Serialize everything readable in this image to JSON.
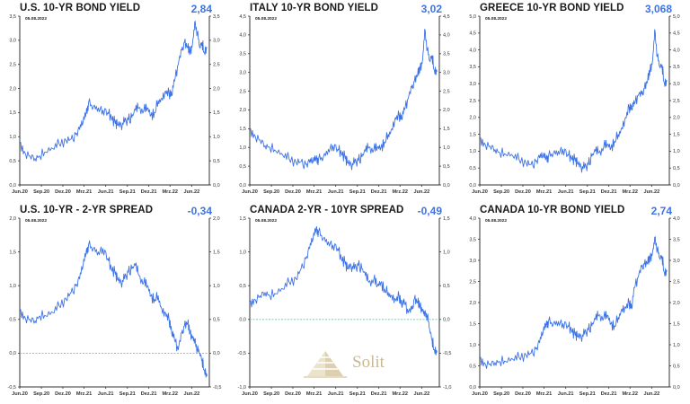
{
  "colors": {
    "line": "#3d73e8",
    "zero_line": "#3fd9b0",
    "axis": "#333333",
    "title": "#1a1a1a",
    "value": "#3d73e8",
    "watermark": "#c9b896"
  },
  "watermark": {
    "text": "Solit"
  },
  "chart_data": [
    {
      "type": "line",
      "title": "U.S. 10-YR BOND YIELD",
      "current_value": "2,84",
      "date_stamp": "05.08.2022",
      "xlabel": "",
      "ylabel": "",
      "x_ticks": [
        "Jun.20",
        "Sep.20",
        "Dez.20",
        "Mrz.21",
        "Jun.21",
        "Sep.21",
        "Dez.21",
        "Mrz.22",
        "Jun.22"
      ],
      "y_ticks": [
        "0,0",
        "0,5",
        "1,0",
        "1,5",
        "2,0",
        "2,5",
        "3,0",
        "3,5"
      ],
      "ylim": [
        0,
        3.5
      ],
      "zero_line": false,
      "grid": false,
      "x": [
        "2020-06-01",
        "2020-06-20",
        "2020-07-15",
        "2020-08-05",
        "2020-08-25",
        "2020-09-20",
        "2020-10-20",
        "2020-11-15",
        "2020-12-15",
        "2021-01-05",
        "2021-01-25",
        "2021-02-10",
        "2021-02-25",
        "2021-03-10",
        "2021-03-20",
        "2021-04-10",
        "2021-05-01",
        "2021-05-20",
        "2021-06-10",
        "2021-06-25",
        "2021-07-10",
        "2021-07-20",
        "2021-08-05",
        "2021-08-20",
        "2021-09-05",
        "2021-09-20",
        "2021-10-05",
        "2021-10-20",
        "2021-11-10",
        "2021-11-25",
        "2021-12-10",
        "2021-12-25",
        "2022-01-10",
        "2022-01-25",
        "2022-02-10",
        "2022-02-25",
        "2022-03-08",
        "2022-03-20",
        "2022-04-05",
        "2022-04-20",
        "2022-05-01",
        "2022-05-15",
        "2022-05-25",
        "2022-06-05",
        "2022-06-14",
        "2022-06-25",
        "2022-07-05",
        "2022-07-15",
        "2022-07-25",
        "2022-08-05"
      ],
      "series": [
        {
          "values": [
            0.9,
            0.7,
            0.6,
            0.55,
            0.6,
            0.68,
            0.75,
            0.85,
            0.92,
            0.95,
            1.05,
            1.15,
            1.3,
            1.5,
            1.7,
            1.62,
            1.6,
            1.55,
            1.5,
            1.4,
            1.3,
            1.25,
            1.25,
            1.3,
            1.35,
            1.4,
            1.55,
            1.6,
            1.55,
            1.6,
            1.45,
            1.5,
            1.75,
            1.8,
            1.95,
            1.9,
            1.85,
            2.15,
            2.5,
            2.8,
            2.95,
            2.85,
            2.75,
            2.95,
            3.38,
            3.15,
            2.85,
            2.95,
            2.75,
            2.84
          ]
        }
      ]
    },
    {
      "type": "line",
      "title": "ITALY 10-YR BOND YIELD",
      "current_value": "3,02",
      "date_stamp": "05.08.2022",
      "xlabel": "",
      "ylabel": "",
      "x_ticks": [
        "Jun.20",
        "Sep.20",
        "Dez.20",
        "Mrz.21",
        "Jun.21",
        "Sep.21",
        "Dez.21",
        "Mrz.22",
        "Jun.22"
      ],
      "y_ticks": [
        "0,0",
        "0,5",
        "1,0",
        "1,5",
        "2,0",
        "2,5",
        "3,0",
        "3,5",
        "4,0",
        "4,5"
      ],
      "ylim": [
        0,
        4.5
      ],
      "zero_line": false,
      "grid": false,
      "x": [
        "2020-06-01",
        "2020-06-20",
        "2020-07-15",
        "2020-08-05",
        "2020-08-25",
        "2020-09-20",
        "2020-10-20",
        "2020-11-15",
        "2020-12-15",
        "2021-01-05",
        "2021-01-25",
        "2021-02-10",
        "2021-02-25",
        "2021-03-10",
        "2021-03-20",
        "2021-04-10",
        "2021-05-01",
        "2021-05-20",
        "2021-06-10",
        "2021-06-25",
        "2021-07-10",
        "2021-07-20",
        "2021-08-05",
        "2021-08-20",
        "2021-09-05",
        "2021-09-20",
        "2021-10-05",
        "2021-10-20",
        "2021-11-10",
        "2021-11-25",
        "2021-12-10",
        "2021-12-25",
        "2022-01-10",
        "2022-01-25",
        "2022-02-10",
        "2022-02-25",
        "2022-03-08",
        "2022-03-20",
        "2022-04-05",
        "2022-04-20",
        "2022-05-01",
        "2022-05-15",
        "2022-05-25",
        "2022-06-05",
        "2022-06-14",
        "2022-06-25",
        "2022-07-05",
        "2022-07-15",
        "2022-07-25",
        "2022-08-05"
      ],
      "series": [
        {
          "values": [
            1.5,
            1.35,
            1.2,
            1.05,
            1.0,
            0.9,
            0.78,
            0.7,
            0.6,
            0.62,
            0.55,
            0.6,
            0.62,
            0.72,
            0.68,
            0.75,
            0.95,
            1.05,
            0.95,
            0.85,
            0.75,
            0.6,
            0.55,
            0.58,
            0.65,
            0.75,
            0.9,
            1.0,
            0.95,
            1.0,
            1.0,
            1.15,
            1.35,
            1.5,
            1.8,
            1.85,
            1.75,
            2.0,
            2.3,
            2.6,
            2.75,
            2.95,
            3.1,
            3.35,
            4.15,
            3.6,
            3.3,
            3.45,
            3.05,
            3.02
          ]
        }
      ]
    },
    {
      "type": "line",
      "title": "GREECE 10-YR BOND YIELD",
      "current_value": "3,068",
      "date_stamp": "05.08.2022",
      "xlabel": "",
      "ylabel": "",
      "x_ticks": [
        "Jun.20",
        "Sep.20",
        "Dez.20",
        "Mrz.21",
        "Jun.21",
        "Sep.21",
        "Dez.21",
        "Mrz.22",
        "Jun.22"
      ],
      "y_ticks": [
        "0,0",
        "0,5",
        "1,0",
        "1,5",
        "2,0",
        "2,5",
        "3,0",
        "3,5",
        "4,0",
        "4,5",
        "5,0"
      ],
      "ylim": [
        0,
        5.0
      ],
      "zero_line": false,
      "grid": false,
      "x": [
        "2020-06-01",
        "2020-06-20",
        "2020-07-15",
        "2020-08-05",
        "2020-08-25",
        "2020-09-20",
        "2020-10-20",
        "2020-11-15",
        "2020-12-15",
        "2021-01-05",
        "2021-01-25",
        "2021-02-10",
        "2021-02-25",
        "2021-03-10",
        "2021-03-20",
        "2021-04-10",
        "2021-05-01",
        "2021-05-20",
        "2021-06-10",
        "2021-06-25",
        "2021-07-10",
        "2021-07-20",
        "2021-08-05",
        "2021-08-20",
        "2021-09-05",
        "2021-09-20",
        "2021-10-05",
        "2021-10-20",
        "2021-11-10",
        "2021-11-25",
        "2021-12-10",
        "2021-12-25",
        "2022-01-10",
        "2022-01-25",
        "2022-02-10",
        "2022-02-25",
        "2022-03-08",
        "2022-03-20",
        "2022-04-05",
        "2022-04-20",
        "2022-05-01",
        "2022-05-15",
        "2022-05-25",
        "2022-06-05",
        "2022-06-14",
        "2022-06-25",
        "2022-07-05",
        "2022-07-15",
        "2022-07-25",
        "2022-08-05"
      ],
      "series": [
        {
          "values": [
            1.4,
            1.25,
            1.15,
            1.05,
            0.95,
            0.9,
            0.85,
            0.75,
            0.65,
            0.6,
            0.7,
            0.8,
            0.85,
            0.8,
            0.85,
            0.95,
            1.0,
            1.05,
            0.9,
            0.8,
            0.75,
            0.65,
            0.55,
            0.5,
            0.6,
            0.85,
            1.0,
            0.95,
            1.15,
            1.2,
            1.1,
            1.3,
            1.5,
            1.7,
            2.0,
            2.3,
            2.25,
            2.4,
            2.65,
            2.7,
            2.85,
            3.1,
            3.4,
            3.7,
            4.6,
            3.8,
            3.5,
            3.55,
            3.0,
            3.068
          ]
        }
      ]
    },
    {
      "type": "line",
      "title": "U.S. 10-YR - 2-YR SPREAD",
      "current_value": "-0,34",
      "date_stamp": "05.08.2022",
      "xlabel": "",
      "ylabel": "",
      "x_ticks": [
        "Jun.20",
        "Sep.20",
        "Dez.20",
        "Mrz.21",
        "Jun.21",
        "Sep.21",
        "Dez.21",
        "Mrz.22",
        "Jun.22"
      ],
      "y_ticks": [
        "-0,5",
        "0,0",
        "0,5",
        "1,0",
        "1,5",
        "2,0"
      ],
      "ylim": [
        -0.5,
        2.0
      ],
      "zero_line": true,
      "grid": false,
      "x": [
        "2020-06-01",
        "2020-06-20",
        "2020-07-15",
        "2020-08-05",
        "2020-08-25",
        "2020-09-20",
        "2020-10-20",
        "2020-11-15",
        "2020-12-15",
        "2021-01-05",
        "2021-01-25",
        "2021-02-10",
        "2021-02-25",
        "2021-03-10",
        "2021-03-20",
        "2021-04-10",
        "2021-05-01",
        "2021-05-20",
        "2021-06-10",
        "2021-06-25",
        "2021-07-10",
        "2021-07-20",
        "2021-08-05",
        "2021-08-20",
        "2021-09-05",
        "2021-09-20",
        "2021-10-05",
        "2021-10-20",
        "2021-11-10",
        "2021-11-25",
        "2021-12-10",
        "2021-12-25",
        "2022-01-10",
        "2022-01-25",
        "2022-02-10",
        "2022-02-25",
        "2022-03-08",
        "2022-03-20",
        "2022-04-05",
        "2022-04-20",
        "2022-05-01",
        "2022-05-15",
        "2022-05-25",
        "2022-06-05",
        "2022-06-14",
        "2022-06-25",
        "2022-07-05",
        "2022-07-15",
        "2022-07-25",
        "2022-08-05"
      ],
      "series": [
        {
          "values": [
            0.65,
            0.55,
            0.5,
            0.48,
            0.55,
            0.55,
            0.6,
            0.7,
            0.8,
            0.9,
            1.0,
            1.1,
            1.3,
            1.5,
            1.6,
            1.55,
            1.5,
            1.55,
            1.4,
            1.25,
            1.2,
            1.1,
            1.05,
            1.1,
            1.2,
            1.25,
            1.3,
            1.15,
            1.05,
            1.0,
            0.85,
            0.8,
            0.85,
            0.65,
            0.6,
            0.5,
            0.3,
            0.2,
            0.05,
            0.3,
            0.4,
            0.45,
            0.3,
            0.25,
            0.2,
            0.05,
            0.0,
            -0.1,
            -0.25,
            -0.34
          ]
        }
      ]
    },
    {
      "type": "line",
      "title": "CANADA 2-YR - 10YR SPREAD",
      "current_value": "-0,49",
      "date_stamp": "05.08.2022",
      "xlabel": "",
      "ylabel": "",
      "x_ticks": [
        "Jun.20",
        "Sep.20",
        "Dez.20",
        "Mrz.21",
        "Jun.21",
        "Sep.21",
        "Dez.21",
        "Mrz.22",
        "Jun.22"
      ],
      "y_ticks": [
        "-1,0",
        "-0,5",
        "0,0",
        "0,5",
        "1,0",
        "1,5"
      ],
      "ylim": [
        -1.0,
        1.5
      ],
      "zero_line": true,
      "grid": false,
      "x": [
        "2020-06-01",
        "2020-06-20",
        "2020-07-15",
        "2020-08-05",
        "2020-08-25",
        "2020-09-20",
        "2020-10-20",
        "2020-11-15",
        "2020-12-15",
        "2021-01-05",
        "2021-01-25",
        "2021-02-10",
        "2021-02-25",
        "2021-03-10",
        "2021-03-20",
        "2021-04-10",
        "2021-05-01",
        "2021-05-20",
        "2021-06-10",
        "2021-06-25",
        "2021-07-10",
        "2021-07-20",
        "2021-08-05",
        "2021-08-20",
        "2021-09-05",
        "2021-09-20",
        "2021-10-05",
        "2021-10-20",
        "2021-11-10",
        "2021-11-25",
        "2021-12-10",
        "2021-12-25",
        "2022-01-10",
        "2022-01-25",
        "2022-02-10",
        "2022-02-25",
        "2022-03-08",
        "2022-03-20",
        "2022-04-05",
        "2022-04-20",
        "2022-05-01",
        "2022-05-15",
        "2022-05-25",
        "2022-06-05",
        "2022-06-14",
        "2022-06-25",
        "2022-07-05",
        "2022-07-15",
        "2022-07-25",
        "2022-08-05"
      ],
      "series": [
        {
          "values": [
            0.25,
            0.3,
            0.35,
            0.4,
            0.35,
            0.38,
            0.45,
            0.55,
            0.6,
            0.75,
            0.9,
            1.05,
            1.2,
            1.35,
            1.3,
            1.2,
            1.15,
            1.1,
            1.05,
            0.9,
            0.85,
            0.75,
            0.8,
            0.75,
            0.8,
            0.75,
            0.65,
            0.55,
            0.6,
            0.5,
            0.55,
            0.45,
            0.4,
            0.35,
            0.3,
            0.35,
            0.2,
            0.25,
            0.1,
            0.15,
            0.3,
            0.25,
            0.2,
            0.15,
            0.1,
            0.05,
            -0.15,
            -0.3,
            -0.45,
            -0.49
          ]
        }
      ]
    },
    {
      "type": "line",
      "title": "CANADA 10-YR BOND YIELD",
      "current_value": "2,74",
      "date_stamp": "05.08.2022",
      "xlabel": "",
      "ylabel": "",
      "x_ticks": [
        "Jun.20",
        "Sep.20",
        "Dez.20",
        "Mrz.21",
        "Jun.21",
        "Sep.21",
        "Dez.21",
        "Mrz.22",
        "Jun.22"
      ],
      "y_ticks": [
        "0,0",
        "0,5",
        "1,0",
        "1,5",
        "2,0",
        "2,5",
        "3,0",
        "3,5",
        "4,0"
      ],
      "ylim": [
        0,
        4.0
      ],
      "zero_line": false,
      "grid": false,
      "x": [
        "2020-06-01",
        "2020-06-20",
        "2020-07-15",
        "2020-08-05",
        "2020-08-25",
        "2020-09-20",
        "2020-10-20",
        "2020-11-15",
        "2020-12-15",
        "2021-01-05",
        "2021-01-25",
        "2021-02-10",
        "2021-02-25",
        "2021-03-10",
        "2021-03-20",
        "2021-04-10",
        "2021-05-01",
        "2021-05-20",
        "2021-06-10",
        "2021-06-25",
        "2021-07-10",
        "2021-07-20",
        "2021-08-05",
        "2021-08-20",
        "2021-09-05",
        "2021-09-20",
        "2021-10-05",
        "2021-10-20",
        "2021-11-10",
        "2021-11-25",
        "2021-12-10",
        "2021-12-25",
        "2022-01-10",
        "2022-01-25",
        "2022-02-10",
        "2022-02-25",
        "2022-03-08",
        "2022-03-20",
        "2022-04-05",
        "2022-04-20",
        "2022-05-01",
        "2022-05-15",
        "2022-05-25",
        "2022-06-05",
        "2022-06-14",
        "2022-06-25",
        "2022-07-05",
        "2022-07-15",
        "2022-07-25",
        "2022-08-05"
      ],
      "series": [
        {
          "values": [
            0.7,
            0.58,
            0.55,
            0.58,
            0.6,
            0.6,
            0.65,
            0.7,
            0.75,
            0.8,
            0.9,
            1.05,
            1.3,
            1.5,
            1.55,
            1.5,
            1.55,
            1.5,
            1.45,
            1.35,
            1.25,
            1.2,
            1.2,
            1.25,
            1.35,
            1.45,
            1.6,
            1.7,
            1.65,
            1.7,
            1.5,
            1.45,
            1.65,
            1.85,
            1.9,
            2.0,
            1.85,
            2.35,
            2.6,
            2.85,
            2.9,
            2.95,
            3.05,
            3.2,
            3.55,
            3.25,
            3.05,
            3.1,
            2.7,
            2.74
          ]
        }
      ]
    }
  ]
}
